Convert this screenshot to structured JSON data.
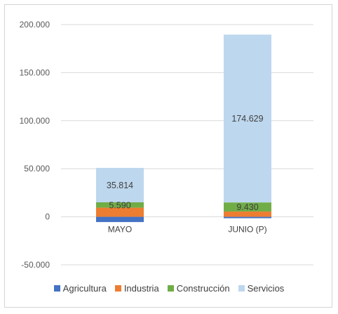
{
  "chart_data": {
    "type": "bar",
    "stacked": true,
    "categories": [
      "MAYO",
      "JUNIO (P)"
    ],
    "ylim": [
      -50000,
      200000
    ],
    "yticks": [
      -50000,
      0,
      50000,
      100000,
      150000,
      200000
    ],
    "ytick_labels": [
      "-50.000",
      "0",
      "50.000",
      "100.000",
      "150.000",
      "200.000"
    ],
    "grid": true,
    "legend_position": "bottom",
    "series": [
      {
        "name": "Agricultura",
        "color": "#4472c4",
        "values": [
          -5500,
          -1500
        ]
      },
      {
        "name": "Industria",
        "color": "#ed7d31",
        "values": [
          9500,
          5500
        ]
      },
      {
        "name": "Construcción",
        "color": "#70ad47",
        "values": [
          5590,
          9430
        ]
      },
      {
        "name": "Servicios",
        "color": "#bdd7ee",
        "values": [
          35814,
          174629
        ]
      }
    ],
    "data_labels": [
      {
        "series": 2,
        "category": 0,
        "text": "5.590"
      },
      {
        "series": 3,
        "category": 0,
        "text": "35.814"
      },
      {
        "series": 2,
        "category": 1,
        "text": "9.430"
      },
      {
        "series": 3,
        "category": 1,
        "text": "174.629"
      }
    ]
  }
}
